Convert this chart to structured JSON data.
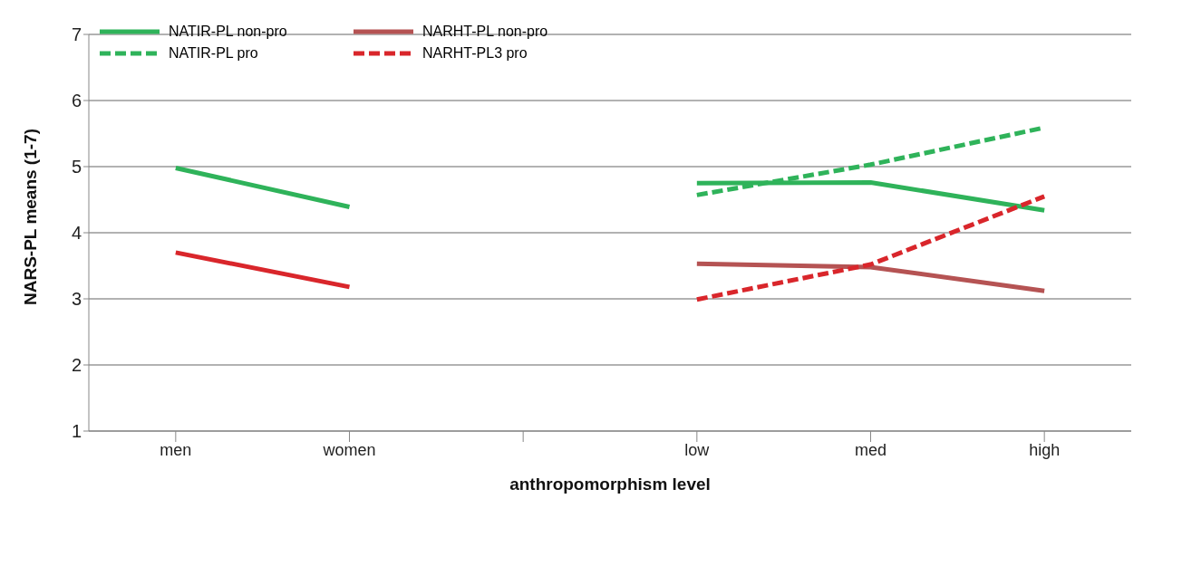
{
  "chart_data": {
    "type": "line",
    "xlabel": "anthropomorphism  level",
    "ylabel": "NARS-PL means (1-7)",
    "categories": [
      "men",
      "women",
      null,
      "low",
      "med",
      "high"
    ],
    "ylim": [
      1,
      7
    ],
    "yticks": [
      1,
      2,
      3,
      4,
      5,
      6,
      7
    ],
    "grid": "y",
    "legend": "top left",
    "marker": "none",
    "series": [
      {
        "name": "NATIR-PL non-pro",
        "color": "#2fb35a",
        "line_style": "solid",
        "values": [
          4.98,
          4.39,
          null,
          4.75,
          4.76,
          4.34
        ]
      },
      {
        "name": "NARHT-PL non-pro",
        "color": "#b55353",
        "line_style": "solid",
        "values": [
          null,
          null,
          null,
          3.53,
          3.48,
          3.12
        ]
      },
      {
        "name": "NATIR-PL pro",
        "color": "#2fb35a",
        "line_style": "dashed",
        "values": [
          null,
          null,
          null,
          4.57,
          5.03,
          5.59
        ]
      },
      {
        "name": "NARHT-PL3 pro",
        "color": "#d9262b",
        "line_style": "dashed",
        "values": [
          null,
          null,
          null,
          2.99,
          3.52,
          4.55
        ]
      },
      {
        "color": "#d9262b",
        "line_style": "solid",
        "values": [
          3.7,
          3.18,
          null,
          null,
          null,
          null
        ]
      }
    ]
  }
}
